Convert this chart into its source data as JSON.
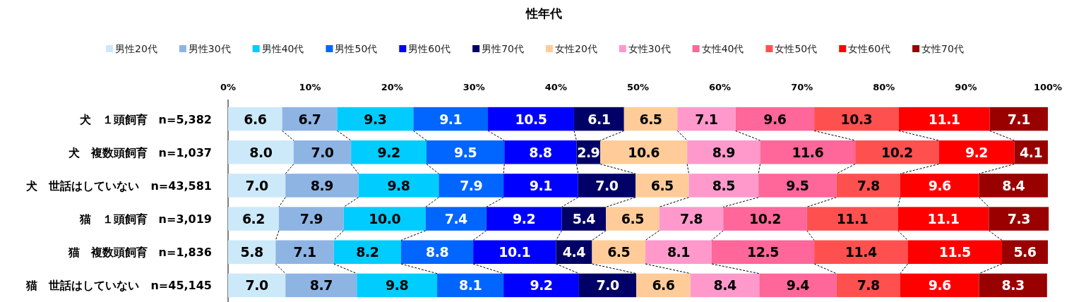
{
  "chart_data": {
    "type": "bar",
    "orientation": "horizontal",
    "stacked": true,
    "title": "性年代",
    "categories": [
      "犬　１頭飼育　n=5,382",
      "犬　複数頭飼育　n=1,037",
      "犬　世話はしていない　n=43,581",
      "猫　１頭飼育　n=3,019",
      "猫　複数頭飼育　n=1,836",
      "猫　世話はしていない　n=45,145"
    ],
    "series": [
      {
        "name": "男性20代",
        "color": "#cce9fa",
        "values": [
          6.6,
          8.0,
          7.0,
          6.2,
          5.8,
          7.0
        ],
        "value_labels": [
          "6.6",
          "8.0",
          "7.0",
          "6.2",
          "5.8",
          "7.0"
        ]
      },
      {
        "name": "男性30代",
        "color": "#8eb4e3",
        "values": [
          6.7,
          7.0,
          8.9,
          7.9,
          7.1,
          8.7
        ],
        "value_labels": [
          "6.7",
          "7.0",
          "8.9",
          "7.9",
          "7.1",
          "8.7"
        ]
      },
      {
        "name": "男性40代",
        "color": "#00ccff",
        "values": [
          9.3,
          9.2,
          9.8,
          10.0,
          8.2,
          9.8
        ],
        "value_labels": [
          "9.3",
          "9.2",
          "9.8",
          "10.0",
          "8.2",
          "9.8"
        ]
      },
      {
        "name": "男性50代",
        "color": "#0066ff",
        "values": [
          9.1,
          9.5,
          7.9,
          7.4,
          8.8,
          8.1
        ],
        "value_labels": [
          "9.1",
          "9.5",
          "7.9",
          "7.4",
          "8.8",
          "8.1"
        ]
      },
      {
        "name": "男性60代",
        "color": "#0000ff",
        "values": [
          10.5,
          8.8,
          9.1,
          9.2,
          10.1,
          9.2
        ],
        "value_labels": [
          "10.5",
          "8.8",
          "9.1",
          "9.2",
          "10.1",
          "9.2"
        ]
      },
      {
        "name": "男性70代",
        "color": "#000066",
        "values": [
          6.1,
          2.9,
          7.0,
          5.4,
          4.4,
          7.0
        ],
        "value_labels": [
          "6.1",
          "2.9",
          "7.0",
          "5.4",
          "4.4",
          "7.0"
        ]
      },
      {
        "name": "女性20代",
        "color": "#ffcc99",
        "values": [
          6.5,
          10.6,
          6.5,
          6.5,
          6.5,
          6.6
        ],
        "value_labels": [
          "6.5",
          "10.6",
          "6.5",
          "6.5",
          "6.5",
          "6.6"
        ]
      },
      {
        "name": "女性30代",
        "color": "#ff99cc",
        "values": [
          7.1,
          8.9,
          8.5,
          7.8,
          8.1,
          8.4
        ],
        "value_labels": [
          "7.1",
          "8.9",
          "8.5",
          "7.8",
          "8.1",
          "8.4"
        ]
      },
      {
        "name": "女性40代",
        "color": "#ff6699",
        "values": [
          9.6,
          11.6,
          9.5,
          10.2,
          12.5,
          9.4
        ],
        "value_labels": [
          "9.6",
          "11.6",
          "9.5",
          "10.2",
          "12.5",
          "9.4"
        ]
      },
      {
        "name": "女性50代",
        "color": "#ff5050",
        "values": [
          10.3,
          10.2,
          7.8,
          11.1,
          11.4,
          7.8
        ],
        "value_labels": [
          "10.3",
          "10.2",
          "7.8",
          "11.1",
          "11.4",
          "7.8"
        ]
      },
      {
        "name": "女性60代",
        "color": "#ff0000",
        "values": [
          11.1,
          9.2,
          9.6,
          11.1,
          11.5,
          9.6
        ],
        "value_labels": [
          "11.1",
          "9.2",
          "9.6",
          "11.1",
          "11.5",
          "9.6"
        ]
      },
      {
        "name": "女性70代",
        "color": "#990000",
        "values": [
          7.1,
          4.1,
          8.4,
          7.3,
          5.6,
          8.3
        ],
        "value_labels": [
          "7.1",
          "4.1",
          "8.4",
          "7.3",
          "5.6",
          "8.3"
        ]
      }
    ],
    "xlim": [
      0,
      100
    ],
    "xticks": [
      {
        "value": 0,
        "label": "0%"
      },
      {
        "value": 10,
        "label": "10%"
      },
      {
        "value": 20,
        "label": "20%"
      },
      {
        "value": 30,
        "label": "30%"
      },
      {
        "value": 40,
        "label": "40%"
      },
      {
        "value": 50,
        "label": "50%"
      },
      {
        "value": 60,
        "label": "60%"
      },
      {
        "value": 70,
        "label": "70%"
      },
      {
        "value": 80,
        "label": "80%"
      },
      {
        "value": 90,
        "label": "90%"
      },
      {
        "value": 100,
        "label": "100%"
      }
    ],
    "legend": "top"
  }
}
